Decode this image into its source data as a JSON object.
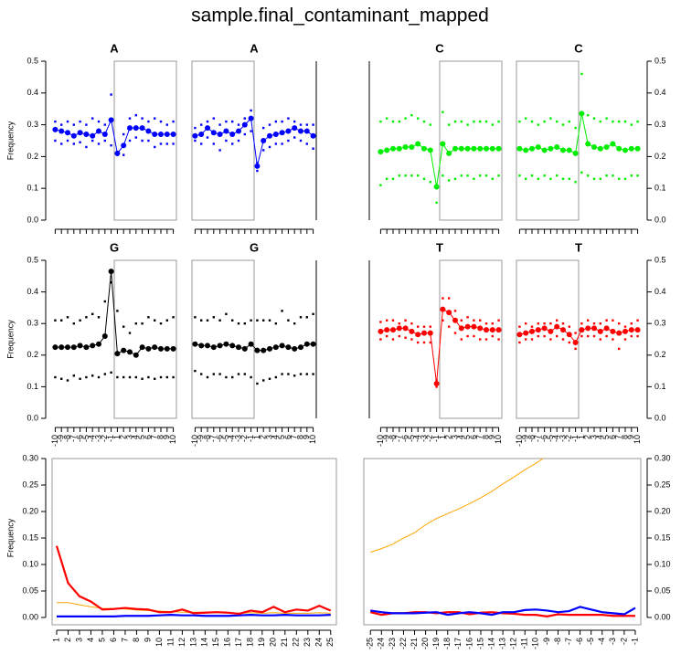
{
  "title": "sample.final_contaminant_mapped",
  "chart_data": [
    {
      "type": "dotline",
      "title": "A",
      "color": "#0000ff",
      "box": "right",
      "ylabel": "Frequency",
      "ylim": [
        0,
        0.5
      ],
      "yticks": [
        {
          "value": 0,
          "label": "0.0"
        },
        0.1,
        0.2,
        0.3,
        0.4,
        0.5
      ],
      "categories": [
        null,
        null,
        null,
        null,
        null,
        null,
        null,
        null,
        null,
        null,
        null,
        null,
        null,
        null,
        null,
        null,
        null,
        null,
        null,
        null
      ],
      "values": [
        0.285,
        0.28,
        0.275,
        0.265,
        0.275,
        0.27,
        0.265,
        0.28,
        0.27,
        0.315,
        0.21,
        0.235,
        0.29,
        0.29,
        0.29,
        0.28,
        0.27,
        0.27,
        0.27,
        0.27
      ],
      "upper": [
        0.31,
        0.3,
        0.31,
        0.3,
        0.31,
        0.3,
        0.32,
        0.31,
        0.3,
        0.395,
        0.215,
        0.27,
        0.32,
        0.33,
        0.32,
        0.31,
        0.32,
        0.31,
        0.3,
        0.31
      ],
      "lower": [
        0.25,
        0.24,
        0.25,
        0.24,
        0.245,
        0.23,
        0.25,
        0.24,
        0.25,
        0.235,
        0.205,
        0.205,
        0.25,
        0.26,
        0.25,
        0.25,
        0.23,
        0.24,
        0.24,
        0.24
      ]
    },
    {
      "type": "dotline",
      "title": "A",
      "color": "#0000ff",
      "box": "left",
      "ylim": [
        0,
        0.5
      ],
      "categories": [
        null,
        null,
        null,
        null,
        null,
        null,
        null,
        null,
        null,
        null,
        null,
        null,
        null,
        null,
        null,
        null,
        null,
        null,
        null,
        null
      ],
      "values": [
        0.265,
        0.27,
        0.29,
        0.275,
        0.27,
        0.28,
        0.27,
        0.28,
        0.3,
        0.32,
        0.17,
        0.25,
        0.265,
        0.27,
        0.275,
        0.28,
        0.29,
        0.28,
        0.28,
        0.265
      ],
      "upper": [
        0.29,
        0.3,
        0.31,
        0.32,
        0.3,
        0.31,
        0.31,
        0.3,
        0.32,
        0.345,
        0.18,
        0.29,
        0.3,
        0.31,
        0.31,
        0.32,
        0.31,
        0.3,
        0.3,
        0.3
      ],
      "lower": [
        0.25,
        0.24,
        0.26,
        0.24,
        0.22,
        0.25,
        0.24,
        0.25,
        0.27,
        0.28,
        0.155,
        0.22,
        0.23,
        0.24,
        0.24,
        0.25,
        0.26,
        0.25,
        0.24,
        0.225
      ]
    },
    {
      "type": "dotline",
      "title": "C",
      "color": "#00ee00",
      "box": "right",
      "ylim": [
        0,
        0.5
      ],
      "categories": [
        null,
        null,
        null,
        null,
        null,
        null,
        null,
        null,
        null,
        null,
        null,
        null,
        null,
        null,
        null,
        null,
        null,
        null,
        null,
        null
      ],
      "values": [
        0.215,
        0.22,
        0.225,
        0.225,
        0.23,
        0.23,
        0.24,
        0.225,
        0.22,
        0.105,
        0.24,
        0.21,
        0.225,
        0.225,
        0.225,
        0.225,
        0.225,
        0.225,
        0.225,
        0.225
      ],
      "upper": [
        0.31,
        0.32,
        0.31,
        0.31,
        0.32,
        0.33,
        0.32,
        0.31,
        0.3,
        0.11,
        0.34,
        0.3,
        0.31,
        0.31,
        0.3,
        0.31,
        0.31,
        0.31,
        0.3,
        0.31
      ],
      "lower": [
        0.11,
        0.13,
        0.13,
        0.14,
        0.14,
        0.14,
        0.14,
        0.13,
        0.12,
        0.055,
        0.14,
        0.125,
        0.13,
        0.14,
        0.14,
        0.13,
        0.14,
        0.14,
        0.13,
        0.14
      ]
    },
    {
      "type": "dotline",
      "title": "C",
      "color": "#00ee00",
      "box": "left",
      "ylim": [
        0,
        0.5
      ],
      "yticks": [
        {
          "value": 0,
          "label": "0.0"
        },
        0.1,
        0.2,
        0.3,
        0.4,
        0.5
      ],
      "categories": [
        null,
        null,
        null,
        null,
        null,
        null,
        null,
        null,
        null,
        null,
        null,
        null,
        null,
        null,
        null,
        null,
        null,
        null,
        null,
        null
      ],
      "values": [
        0.225,
        0.22,
        0.225,
        0.23,
        0.22,
        0.225,
        0.23,
        0.22,
        0.22,
        0.21,
        0.335,
        0.24,
        0.23,
        0.225,
        0.23,
        0.24,
        0.225,
        0.22,
        0.225,
        0.225
      ],
      "upper": [
        0.31,
        0.32,
        0.31,
        0.3,
        0.31,
        0.32,
        0.31,
        0.3,
        0.31,
        0.29,
        0.46,
        0.33,
        0.32,
        0.31,
        0.32,
        0.31,
        0.31,
        0.31,
        0.3,
        0.31
      ],
      "lower": [
        0.14,
        0.13,
        0.14,
        0.13,
        0.14,
        0.13,
        0.14,
        0.13,
        0.13,
        0.12,
        0.15,
        0.14,
        0.13,
        0.13,
        0.14,
        0.14,
        0.13,
        0.13,
        0.14,
        0.14
      ]
    },
    {
      "type": "dotline",
      "title": "G",
      "color": "#000000",
      "box": "right",
      "ylabel": "Frequency",
      "ylim": [
        0,
        0.5
      ],
      "yticks": [
        {
          "value": 0,
          "label": "0.0"
        },
        0.1,
        0.2,
        0.3,
        0.4,
        0.5
      ],
      "categories": [
        -10,
        -9,
        -8,
        -7,
        -6,
        -5,
        -4,
        -3,
        -2,
        -1,
        1,
        2,
        3,
        4,
        5,
        6,
        7,
        8,
        9,
        10
      ],
      "values": [
        0.225,
        0.225,
        0.225,
        0.225,
        0.23,
        0.225,
        0.23,
        0.235,
        0.26,
        0.465,
        0.205,
        0.215,
        0.21,
        0.2,
        0.225,
        0.22,
        0.225,
        0.22,
        0.22,
        0.22
      ],
      "upper": [
        0.31,
        0.31,
        0.32,
        0.3,
        0.31,
        0.32,
        0.33,
        0.32,
        0.37,
        0.43,
        0.34,
        0.29,
        0.27,
        0.3,
        0.3,
        0.32,
        0.31,
        0.3,
        0.31,
        0.32
      ],
      "lower": [
        0.13,
        0.125,
        0.12,
        0.135,
        0.125,
        0.13,
        0.135,
        0.13,
        0.14,
        0.145,
        0.13,
        0.13,
        0.13,
        0.13,
        0.125,
        0.13,
        0.125,
        0.13,
        0.13,
        0.13
      ]
    },
    {
      "type": "dotline",
      "title": "G",
      "color": "#000000",
      "box": "left",
      "ylim": [
        0,
        0.5
      ],
      "categories": [
        -10,
        -9,
        -8,
        -7,
        -6,
        -5,
        -4,
        -3,
        -2,
        -1,
        1,
        2,
        3,
        4,
        5,
        6,
        7,
        8,
        9,
        10
      ],
      "values": [
        0.235,
        0.23,
        0.23,
        0.225,
        0.23,
        0.235,
        0.23,
        0.225,
        0.22,
        0.235,
        0.215,
        0.215,
        0.22,
        0.225,
        0.23,
        0.225,
        0.22,
        0.225,
        0.235,
        0.235
      ],
      "upper": [
        0.32,
        0.31,
        0.31,
        0.32,
        0.31,
        0.33,
        0.31,
        0.3,
        0.3,
        0.31,
        0.31,
        0.31,
        0.31,
        0.3,
        0.34,
        0.31,
        0.3,
        0.32,
        0.32,
        0.33
      ],
      "lower": [
        0.15,
        0.14,
        0.13,
        0.14,
        0.14,
        0.13,
        0.13,
        0.14,
        0.14,
        0.13,
        0.11,
        0.12,
        0.125,
        0.13,
        0.14,
        0.14,
        0.135,
        0.14,
        0.14,
        0.14
      ]
    },
    {
      "type": "dotline",
      "title": "T",
      "color": "#ff0000",
      "box": "right",
      "ylim": [
        0,
        0.5
      ],
      "categories": [
        -10,
        -9,
        -8,
        -7,
        -6,
        -5,
        -4,
        -3,
        -2,
        -1,
        1,
        2,
        3,
        4,
        5,
        6,
        7,
        8,
        9,
        10
      ],
      "values": [
        0.275,
        0.28,
        0.28,
        0.285,
        0.285,
        0.275,
        0.265,
        0.27,
        0.27,
        0.11,
        0.345,
        0.335,
        0.31,
        0.285,
        0.29,
        0.29,
        0.285,
        0.28,
        0.28,
        0.28
      ],
      "upper": [
        0.305,
        0.31,
        0.31,
        0.3,
        0.31,
        0.3,
        0.29,
        0.29,
        0.29,
        0.12,
        0.38,
        0.38,
        0.34,
        0.31,
        0.32,
        0.31,
        0.31,
        0.3,
        0.3,
        0.31
      ],
      "lower": [
        0.25,
        0.26,
        0.25,
        0.26,
        0.255,
        0.25,
        0.24,
        0.24,
        0.24,
        0.1,
        0.31,
        0.29,
        0.27,
        0.25,
        0.26,
        0.26,
        0.25,
        0.25,
        0.26,
        0.25
      ]
    },
    {
      "type": "dotline",
      "title": "T",
      "color": "#ff0000",
      "box": "left",
      "ylim": [
        0,
        0.5
      ],
      "yticks": [
        {
          "value": 0,
          "label": "0.0"
        },
        0.1,
        0.2,
        0.3,
        0.4,
        0.5
      ],
      "categories": [
        -10,
        -9,
        -8,
        -7,
        -6,
        -5,
        -4,
        -3,
        -2,
        -1,
        1,
        2,
        3,
        4,
        5,
        6,
        7,
        8,
        9,
        10
      ],
      "values": [
        0.265,
        0.27,
        0.275,
        0.28,
        0.285,
        0.275,
        0.29,
        0.28,
        0.265,
        0.24,
        0.28,
        0.285,
        0.285,
        0.275,
        0.285,
        0.275,
        0.27,
        0.275,
        0.28,
        0.28
      ],
      "upper": [
        0.29,
        0.3,
        0.29,
        0.3,
        0.3,
        0.3,
        0.31,
        0.3,
        0.29,
        0.27,
        0.3,
        0.31,
        0.3,
        0.3,
        0.31,
        0.31,
        0.3,
        0.29,
        0.3,
        0.31
      ],
      "lower": [
        0.24,
        0.25,
        0.25,
        0.26,
        0.26,
        0.25,
        0.26,
        0.25,
        0.24,
        0.22,
        0.26,
        0.26,
        0.26,
        0.25,
        0.26,
        0.25,
        0.22,
        0.25,
        0.26,
        0.26
      ]
    },
    {
      "type": "line",
      "ylabel": "Frequency",
      "ylim": [
        0,
        0.3
      ],
      "xlim": [
        0.6,
        25.5
      ],
      "yticks": [
        {
          "value": 0,
          "label": "0.00"
        },
        0.05,
        {
          "value": 0.1,
          "label": "0.10"
        },
        0.15,
        {
          "value": 0.2,
          "label": "0.20"
        },
        0.25,
        {
          "value": 0.3,
          "label": "0.30"
        }
      ],
      "x": [
        1,
        2,
        3,
        4,
        5,
        6,
        7,
        8,
        9,
        10,
        11,
        12,
        13,
        14,
        15,
        16,
        17,
        18,
        19,
        20,
        21,
        22,
        23,
        24,
        25
      ],
      "xticks": [
        1,
        2,
        3,
        4,
        5,
        6,
        7,
        8,
        9,
        10,
        11,
        12,
        13,
        14,
        15,
        16,
        17,
        18,
        19,
        20,
        21,
        22,
        23,
        24,
        25
      ],
      "series": [
        {
          "color": "#ffa500",
          "width": 1,
          "values": [
            0.028,
            0.028,
            0.024,
            0.02,
            0.017,
            0.017,
            0.016,
            0.014,
            0.013,
            0.012,
            0.011,
            0.01,
            0.01,
            0.01,
            0.009,
            0.009,
            0.008,
            0.009,
            0.008,
            0.009,
            0.008,
            0.008,
            0.008,
            0.009,
            0.008
          ]
        },
        {
          "color": "#0000ff",
          "width": 2.2,
          "values": [
            0.002,
            0.002,
            0.002,
            0.002,
            0.002,
            0.002,
            0.003,
            0.003,
            0.003,
            0.004,
            0.005,
            0.004,
            0.004,
            0.003,
            0.003,
            0.003,
            0.004,
            0.005,
            0.004,
            0.004,
            0.005,
            0.004,
            0.004,
            0.004,
            0.005
          ]
        },
        {
          "color": "#ff0000",
          "width": 2.2,
          "values": [
            0.135,
            0.065,
            0.04,
            0.03,
            0.015,
            0.016,
            0.018,
            0.016,
            0.015,
            0.01,
            0.01,
            0.015,
            0.008,
            0.009,
            0.01,
            0.009,
            0.007,
            0.013,
            0.01,
            0.02,
            0.01,
            0.015,
            0.013,
            0.022,
            0.013
          ]
        }
      ]
    },
    {
      "type": "line",
      "ylim": [
        0,
        0.3
      ],
      "xlim": [
        -25.6,
        -0.5
      ],
      "yticks": [
        {
          "value": 0,
          "label": "0.00"
        },
        0.05,
        {
          "value": 0.1,
          "label": "0.10"
        },
        0.15,
        {
          "value": 0.2,
          "label": "0.20"
        },
        0.25,
        {
          "value": 0.3,
          "label": "0.30"
        }
      ],
      "x": [
        -25,
        -24,
        -23,
        -22,
        -21,
        -20,
        -19,
        -18,
        -17,
        -16,
        -15,
        -14,
        -13,
        -12,
        -11,
        -10,
        -9,
        -8,
        -7,
        -6,
        -5,
        -4,
        -3,
        -2,
        -1
      ],
      "xticks": [
        -25,
        -24,
        -23,
        -22,
        -21,
        -20,
        -19,
        -18,
        -17,
        -16,
        -15,
        -14,
        -13,
        -12,
        -11,
        -10,
        -9,
        -8,
        -7,
        -6,
        -5,
        -4,
        -3,
        -2,
        -1
      ],
      "series": [
        {
          "color": "#ffa500",
          "width": 1,
          "values": [
            0.123,
            0.13,
            0.138,
            0.15,
            0.16,
            0.175,
            0.187,
            0.196,
            0.205,
            0.215,
            0.226,
            0.238,
            0.252,
            0.265,
            0.279,
            0.291,
            0.305,
            null,
            null,
            null,
            null,
            null,
            null,
            null,
            null
          ]
        },
        {
          "color": "#ff0000",
          "width": 2.2,
          "values": [
            0.01,
            0.005,
            0.008,
            0.008,
            0.01,
            0.01,
            0.008,
            0.01,
            0.01,
            0.006,
            0.009,
            0.01,
            0.008,
            0.007,
            0.005,
            0.005,
            0.002,
            0.006,
            0.005,
            0.005,
            0.005,
            0.005,
            0.003,
            0.003,
            0.003
          ]
        },
        {
          "color": "#0000ff",
          "width": 2.2,
          "values": [
            0.013,
            0.01,
            0.008,
            0.008,
            0.008,
            0.009,
            0.01,
            0.005,
            0.008,
            0.01,
            0.008,
            0.005,
            0.01,
            0.01,
            0.014,
            0.015,
            0.013,
            0.01,
            0.012,
            0.02,
            0.015,
            0.01,
            0.008,
            0.006,
            0.018
          ]
        }
      ]
    }
  ]
}
